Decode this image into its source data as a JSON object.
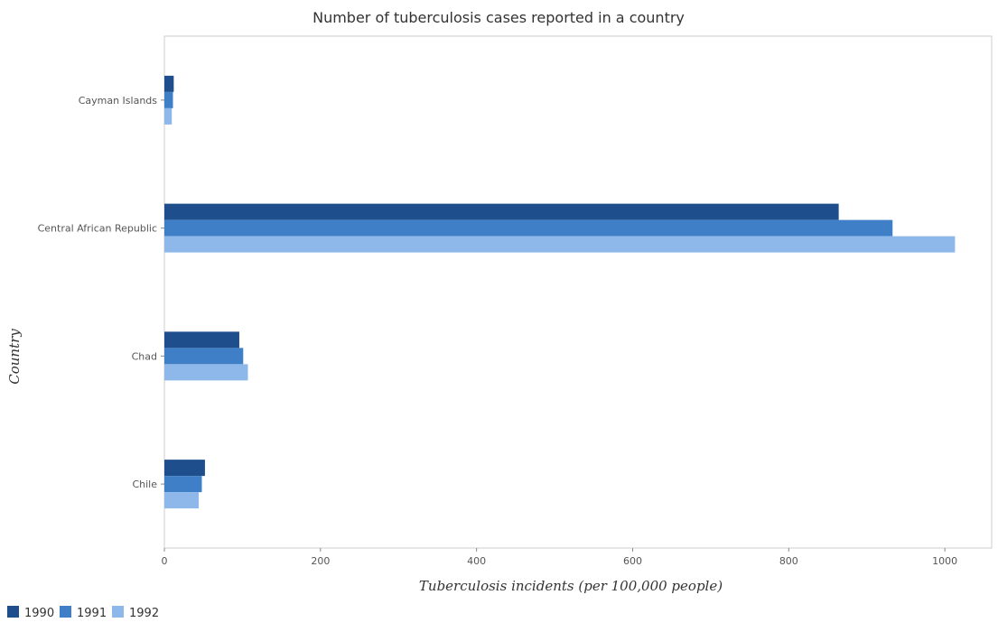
{
  "chart_data": {
    "type": "bar",
    "orientation": "horizontal",
    "title": "Number of tuberculosis cases reported in a country",
    "xlabel": "Tuberculosis incidents (per 100,000 people)",
    "ylabel": "Country",
    "xlim": [
      0,
      1060
    ],
    "xticks": [
      0,
      200,
      400,
      600,
      800,
      1000
    ],
    "grid": false,
    "legend_position": "bottom-left",
    "categories": [
      "Cayman Islands",
      "Central African Republic",
      "Chad",
      "Chile"
    ],
    "series": [
      {
        "name": "1990",
        "color": "#1f4e8c",
        "values": [
          12,
          864,
          96,
          52
        ]
      },
      {
        "name": "1991",
        "color": "#3f7fc7",
        "values": [
          11,
          933,
          101,
          48
        ]
      },
      {
        "name": "1992",
        "color": "#8eb8ea",
        "values": [
          9.5,
          1013,
          107,
          44
        ]
      }
    ]
  }
}
